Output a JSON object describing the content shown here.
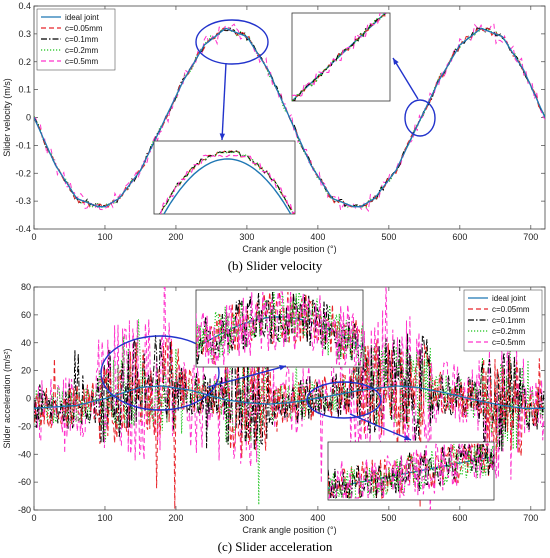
{
  "chart_data": [
    {
      "type": "line",
      "panel": "b",
      "caption": "(b) Slider velocity",
      "xlabel": "Crank angle position (°)",
      "ylabel": "Slider velocity (m/s)",
      "xlim": [
        0,
        720
      ],
      "ylim": [
        -0.4,
        0.4
      ],
      "xticks": [
        0,
        100,
        200,
        300,
        400,
        500,
        600,
        700
      ],
      "yticks": [
        -0.4,
        -0.3,
        -0.2,
        -0.1,
        0,
        0.1,
        0.2,
        0.3,
        0.4
      ],
      "legend": "top-left",
      "grid": false,
      "series": [
        {
          "name": "ideal joint",
          "color": "#1f77b4",
          "style": "solid",
          "x": [
            0,
            30,
            60,
            90,
            100,
            120,
            150,
            180,
            210,
            240,
            270,
            300,
            330,
            360,
            390,
            420,
            450,
            460,
            480,
            510,
            540,
            570,
            600,
            630,
            660,
            690,
            720
          ],
          "y": [
            0.0,
            -0.17,
            -0.29,
            -0.32,
            -0.32,
            -0.29,
            -0.19,
            -0.03,
            0.13,
            0.26,
            0.32,
            0.29,
            0.17,
            0.0,
            -0.17,
            -0.29,
            -0.32,
            -0.32,
            -0.29,
            -0.19,
            -0.03,
            0.13,
            0.26,
            0.32,
            0.29,
            0.17,
            0.0
          ]
        },
        {
          "name": "c=0.05mm",
          "color": "#e8242a",
          "style": "dash",
          "x": [],
          "y": []
        },
        {
          "name": "c=0.1mm",
          "color": "#000000",
          "style": "dashdot",
          "x": [],
          "y": []
        },
        {
          "name": "c=0.2mm",
          "color": "#19c219",
          "style": "dot",
          "x": [],
          "y": []
        },
        {
          "name": "c=0.5mm",
          "color": "#ff33cc",
          "style": "dash",
          "x": [],
          "y": []
        }
      ]
    },
    {
      "type": "line",
      "panel": "c",
      "caption": "(c) Slider acceleration",
      "xlabel": "Crank angle position (°)",
      "ylabel": "Slider acceleration (m/s²)",
      "xlim": [
        0,
        720
      ],
      "ylim": [
        -80,
        80
      ],
      "xticks": [
        0,
        100,
        200,
        300,
        400,
        500,
        600,
        700
      ],
      "yticks": [
        -80,
        -60,
        -40,
        -20,
        0,
        20,
        40,
        60,
        80
      ],
      "legend": "top-right",
      "grid": false,
      "series": [
        {
          "name": "ideal joint",
          "color": "#1f77b4",
          "style": "solid",
          "x": [
            0,
            60,
            100,
            150,
            180,
            220,
            270,
            300,
            330,
            360,
            420,
            460,
            510,
            540,
            580,
            630,
            660,
            690,
            720
          ],
          "y": [
            -7,
            -5,
            0,
            8,
            9,
            6,
            -1,
            -3,
            -4,
            -3,
            2,
            6,
            9,
            8,
            4,
            -2,
            -5,
            -7,
            -7
          ]
        },
        {
          "name": "c=0.05mm",
          "color": "#e8242a",
          "style": "dash",
          "x": [],
          "y": []
        },
        {
          "name": "c=0.1mm",
          "color": "#000000",
          "style": "dashdot",
          "x": [],
          "y": []
        },
        {
          "name": "c=0.2mm",
          "color": "#19c219",
          "style": "dot",
          "x": [],
          "y": []
        },
        {
          "name": "c=0.5mm",
          "color": "#ff33cc",
          "style": "dash",
          "x": [],
          "y": []
        }
      ]
    }
  ]
}
